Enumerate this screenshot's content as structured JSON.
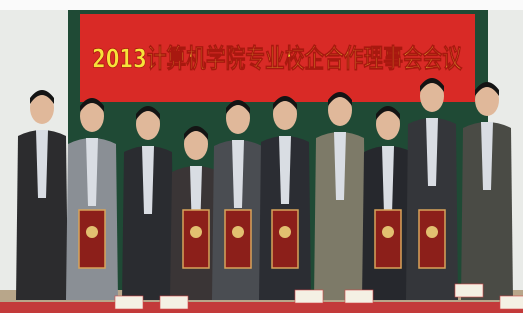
{
  "banner": {
    "text": "2013计算机学院专业校企合作理事会会议"
  }
}
